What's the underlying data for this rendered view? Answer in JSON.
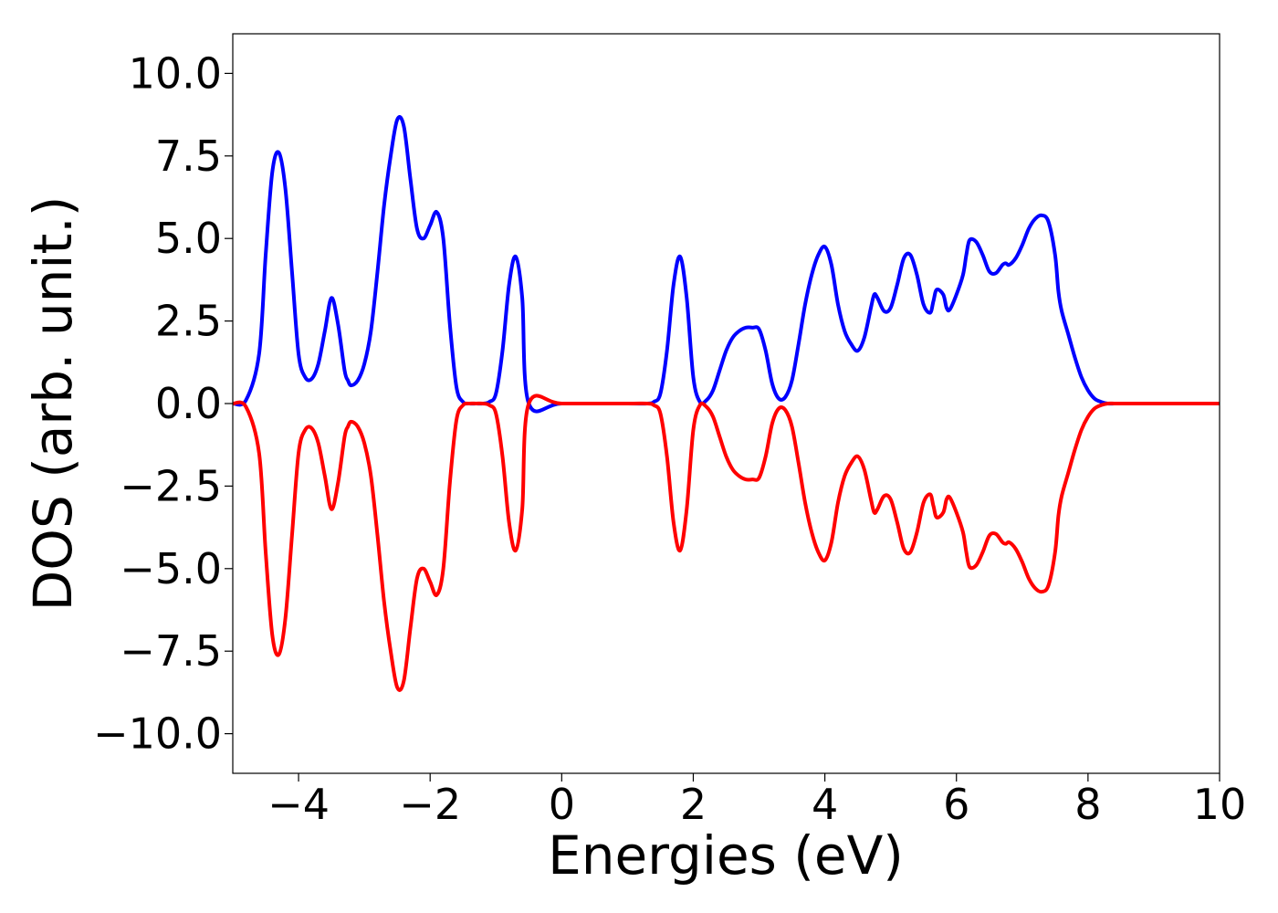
{
  "chart_data": {
    "type": "line",
    "title": "",
    "xlabel": "Energies (eV)",
    "ylabel": "DOS (arb. unit.)",
    "xlim": [
      -5,
      10
    ],
    "ylim": [
      -11.2,
      11.2
    ],
    "grid": false,
    "legend": "none",
    "xticks": [
      -4,
      -2,
      0,
      2,
      4,
      6,
      8,
      10
    ],
    "xtick_labels": [
      "−4",
      "−2",
      "0",
      "2",
      "4",
      "6",
      "8",
      "10"
    ],
    "yticks": [
      10,
      7.5,
      5,
      2.5,
      0,
      -2.5,
      -5,
      -7.5,
      -10
    ],
    "ytick_labels": [
      "10.0",
      "7.5",
      "5.0",
      "2.5",
      "0.0",
      "−2.5",
      "−5.0",
      "−7.5",
      "−10.0"
    ],
    "series": [
      {
        "color": "#0000ff",
        "x": [
          -5.0,
          -4.8,
          -4.6,
          -4.5,
          -4.4,
          -4.3,
          -4.2,
          -4.1,
          -4.0,
          -3.9,
          -3.8,
          -3.7,
          -3.6,
          -3.5,
          -3.4,
          -3.3,
          -3.25,
          -3.2,
          -3.1,
          -3.0,
          -2.9,
          -2.8,
          -2.7,
          -2.6,
          -2.5,
          -2.4,
          -2.3,
          -2.2,
          -2.1,
          -2.0,
          -1.9,
          -1.8,
          -1.7,
          -1.6,
          -1.5,
          -1.4,
          -1.3,
          -1.2,
          -1.1,
          -1.0,
          -0.9,
          -0.8,
          -0.7,
          -0.6,
          -0.5,
          0.0,
          1.0,
          1.3,
          1.4,
          1.5,
          1.6,
          1.7,
          1.8,
          1.9,
          2.0,
          2.1,
          2.2,
          2.3,
          2.4,
          2.5,
          2.6,
          2.7,
          2.8,
          2.9,
          3.0,
          3.1,
          3.2,
          3.3,
          3.4,
          3.5,
          3.6,
          3.7,
          3.8,
          3.9,
          4.0,
          4.1,
          4.2,
          4.3,
          4.4,
          4.5,
          4.6,
          4.7,
          4.75,
          4.8,
          4.9,
          5.0,
          5.1,
          5.2,
          5.3,
          5.4,
          5.5,
          5.6,
          5.65,
          5.7,
          5.8,
          5.85,
          5.9,
          6.0,
          6.1,
          6.15,
          6.2,
          6.3,
          6.4,
          6.5,
          6.6,
          6.7,
          6.75,
          6.8,
          6.9,
          7.0,
          7.1,
          7.2,
          7.3,
          7.4,
          7.5,
          7.55,
          7.6,
          7.7,
          7.8,
          7.9,
          8.0,
          8.1,
          8.2,
          8.3,
          8.4,
          8.5,
          8.6,
          8.7,
          8.8,
          8.9,
          8.95,
          9.0,
          9.1,
          9.2,
          9.3,
          9.4,
          9.5,
          9.6,
          9.7,
          9.8,
          9.9,
          10.0
        ],
        "y": [
          0.0,
          0.1,
          1.5,
          4.5,
          7.0,
          7.6,
          6.5,
          4.0,
          1.5,
          0.8,
          0.75,
          1.2,
          2.2,
          3.2,
          2.4,
          1.0,
          0.7,
          0.55,
          0.7,
          1.2,
          2.2,
          4.0,
          6.0,
          7.5,
          8.6,
          8.4,
          6.8,
          5.3,
          5.0,
          5.4,
          5.8,
          5.0,
          2.4,
          0.5,
          0.05,
          0.0,
          0.0,
          0.0,
          0.05,
          0.3,
          1.6,
          3.6,
          4.45,
          3.2,
          0.0,
          0.0,
          0.0,
          0.0,
          0.05,
          0.3,
          1.6,
          3.6,
          4.45,
          3.2,
          0.8,
          0.05,
          0.1,
          0.4,
          1.0,
          1.6,
          2.0,
          2.2,
          2.3,
          2.3,
          2.25,
          1.6,
          0.6,
          0.15,
          0.2,
          0.7,
          1.8,
          3.0,
          3.9,
          4.5,
          4.75,
          4.2,
          3.0,
          2.2,
          1.8,
          1.6,
          2.0,
          2.9,
          3.3,
          3.2,
          2.8,
          2.9,
          3.6,
          4.4,
          4.5,
          3.9,
          3.0,
          2.75,
          3.1,
          3.45,
          3.3,
          2.9,
          2.85,
          3.3,
          3.9,
          4.5,
          4.95,
          4.9,
          4.5,
          4.0,
          3.95,
          4.2,
          4.25,
          4.2,
          4.4,
          4.8,
          5.3,
          5.6,
          5.7,
          5.5,
          4.5,
          3.4,
          2.8,
          2.1,
          1.4,
          0.8,
          0.4,
          0.15,
          0.05,
          0.0,
          0.0,
          0.0,
          0.0,
          0.0,
          0.0,
          0.0,
          0.0,
          0.0,
          0.0,
          0.0,
          0.0,
          0.0,
          0.0,
          0.0,
          0.0,
          0.0,
          0.0,
          0.0
        ]
      },
      {
        "color": "#ff0000",
        "x": [
          -5.0,
          -4.8,
          -4.6,
          -4.5,
          -4.4,
          -4.3,
          -4.2,
          -4.1,
          -4.0,
          -3.9,
          -3.8,
          -3.7,
          -3.6,
          -3.5,
          -3.4,
          -3.3,
          -3.25,
          -3.2,
          -3.1,
          -3.0,
          -2.9,
          -2.8,
          -2.7,
          -2.6,
          -2.5,
          -2.4,
          -2.3,
          -2.2,
          -2.1,
          -2.0,
          -1.9,
          -1.8,
          -1.7,
          -1.6,
          -1.5,
          -1.4,
          -1.3,
          -1.2,
          -1.1,
          -1.0,
          -0.9,
          -0.8,
          -0.7,
          -0.6,
          -0.5,
          0.0,
          1.0,
          1.3,
          1.4,
          1.5,
          1.6,
          1.7,
          1.8,
          1.9,
          2.0,
          2.1,
          2.2,
          2.3,
          2.4,
          2.5,
          2.6,
          2.7,
          2.8,
          2.9,
          3.0,
          3.1,
          3.2,
          3.3,
          3.4,
          3.5,
          3.6,
          3.7,
          3.8,
          3.9,
          4.0,
          4.1,
          4.2,
          4.3,
          4.4,
          4.5,
          4.6,
          4.7,
          4.75,
          4.8,
          4.9,
          5.0,
          5.1,
          5.2,
          5.3,
          5.4,
          5.5,
          5.6,
          5.65,
          5.7,
          5.8,
          5.85,
          5.9,
          6.0,
          6.1,
          6.15,
          6.2,
          6.3,
          6.4,
          6.5,
          6.6,
          6.7,
          6.75,
          6.8,
          6.9,
          7.0,
          7.1,
          7.2,
          7.3,
          7.4,
          7.5,
          7.55,
          7.6,
          7.7,
          7.8,
          7.9,
          8.0,
          8.1,
          8.2,
          8.3,
          8.4,
          8.5,
          8.6,
          8.7,
          8.8,
          8.9,
          8.95,
          9.0,
          9.1,
          9.2,
          9.3,
          9.4,
          9.5,
          9.6,
          9.7,
          9.8,
          9.9,
          10.0
        ],
        "y": [
          0.0,
          -0.1,
          -1.5,
          -4.5,
          -7.0,
          -7.6,
          -6.5,
          -4.0,
          -1.5,
          -0.8,
          -0.75,
          -1.2,
          -2.2,
          -3.2,
          -2.4,
          -1.0,
          -0.7,
          -0.55,
          -0.7,
          -1.2,
          -2.2,
          -4.0,
          -6.0,
          -7.5,
          -8.6,
          -8.4,
          -6.8,
          -5.3,
          -5.0,
          -5.4,
          -5.8,
          -5.0,
          -2.4,
          -0.5,
          -0.05,
          0.0,
          0.0,
          0.0,
          -0.05,
          -0.3,
          -1.6,
          -3.6,
          -4.45,
          -3.2,
          0.0,
          0.0,
          0.0,
          0.0,
          -0.05,
          -0.3,
          -1.6,
          -3.6,
          -4.45,
          -3.2,
          -0.8,
          -0.05,
          -0.1,
          -0.4,
          -1.0,
          -1.6,
          -2.0,
          -2.2,
          -2.3,
          -2.3,
          -2.25,
          -1.6,
          -0.6,
          -0.15,
          -0.2,
          -0.7,
          -1.8,
          -3.0,
          -3.9,
          -4.5,
          -4.75,
          -4.2,
          -3.0,
          -2.2,
          -1.8,
          -1.6,
          -2.0,
          -2.9,
          -3.3,
          -3.2,
          -2.8,
          -2.9,
          -3.6,
          -4.4,
          -4.5,
          -3.9,
          -3.0,
          -2.75,
          -3.1,
          -3.45,
          -3.3,
          -2.9,
          -2.85,
          -3.3,
          -3.9,
          -4.5,
          -4.95,
          -4.9,
          -4.5,
          -4.0,
          -3.95,
          -4.2,
          -4.25,
          -4.2,
          -4.4,
          -4.8,
          -5.3,
          -5.6,
          -5.7,
          -5.5,
          -4.5,
          -3.4,
          -2.8,
          -2.1,
          -1.4,
          -0.8,
          -0.4,
          -0.15,
          -0.05,
          0.0,
          0.0,
          0.0,
          0.0,
          0.0,
          0.0,
          0.0,
          0.0,
          0.0,
          0.0,
          0.0,
          0.0,
          0.0,
          0.0,
          0.0,
          0.0,
          0.0,
          0.0,
          0.0
        ]
      }
    ]
  }
}
